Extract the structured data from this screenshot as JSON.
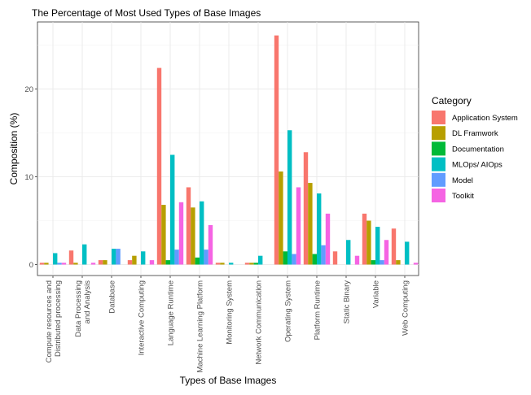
{
  "chart_data": {
    "type": "bar",
    "title": "The Percentage of Most Used Types of Base Images",
    "xlabel": "Types of Base Images",
    "ylabel": "Composition (%)",
    "ylim": [
      0,
      28
    ],
    "yticks": [
      0,
      10,
      20
    ],
    "grid": true,
    "legend_position": "right",
    "legend_title": "Category",
    "categories": [
      "Compute resources and\nDistributed processing",
      "Data Processing\nand Analysis",
      "Database",
      "Interactive Computing",
      "Language Runtime",
      "Machine Learning Platform",
      "Monitoring System",
      "Network Communication",
      "Operating System",
      "Platform Runtime",
      "Static Binary",
      "Variable",
      "Web Computing"
    ],
    "series": [
      {
        "name": "Application System",
        "color": "#F8766D",
        "values": [
          0.2,
          1.6,
          0.5,
          0.5,
          22.4,
          8.8,
          0.2,
          0.2,
          26.1,
          12.8,
          1.5,
          5.8,
          4.1
        ]
      },
      {
        "name": "DL Framwork",
        "color": "#B79F00",
        "values": [
          0.2,
          0.2,
          0.5,
          1.0,
          6.8,
          6.5,
          0.2,
          0.2,
          10.6,
          9.3,
          0.0,
          5.0,
          0.5
        ]
      },
      {
        "name": "Documentation",
        "color": "#00BA38",
        "values": [
          0.0,
          0.0,
          0.0,
          0.0,
          0.5,
          0.8,
          0.0,
          0.2,
          1.5,
          1.2,
          0.0,
          0.5,
          0.0
        ]
      },
      {
        "name": "MLOps/ AIOps",
        "color": "#00BFC4",
        "values": [
          1.3,
          2.3,
          1.8,
          1.5,
          12.5,
          7.2,
          0.2,
          1.0,
          15.3,
          8.1,
          2.8,
          4.3,
          2.6
        ]
      },
      {
        "name": "Model",
        "color": "#619CFF",
        "values": [
          0.2,
          0.0,
          1.8,
          0.0,
          1.7,
          1.7,
          0.0,
          0.0,
          1.2,
          2.2,
          0.0,
          0.5,
          0.0
        ]
      },
      {
        "name": "Toolkit",
        "color": "#F564E3",
        "values": [
          0.2,
          0.2,
          0.0,
          0.5,
          7.1,
          4.5,
          0.0,
          0.0,
          8.8,
          5.8,
          1.0,
          2.8,
          0.2
        ]
      }
    ]
  }
}
